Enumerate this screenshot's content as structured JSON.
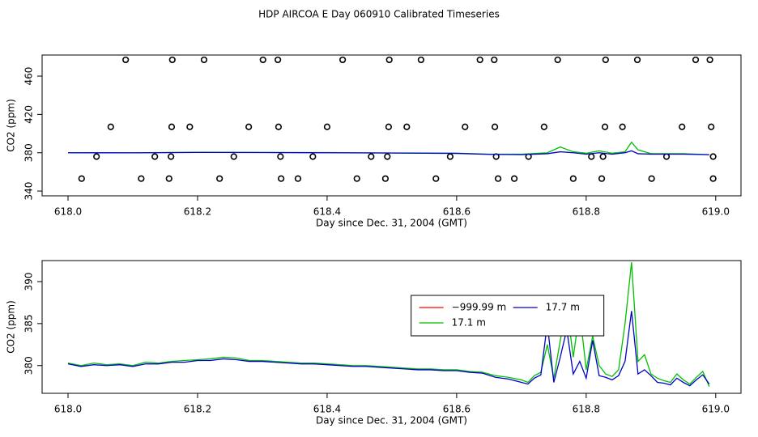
{
  "title": "HDP AIRCOA E  Day 060910  Calibrated Timeseries",
  "chart_data": [
    {
      "type": "scatter",
      "xlabel": "Day since Dec. 31, 2004 (GMT)",
      "ylabel": "CO2 (ppm)",
      "xlim": [
        617.96,
        619.039
      ],
      "ylim": [
        335,
        482
      ],
      "xticks": [
        {
          "value": 618,
          "label": "618.0"
        },
        618.2,
        618.4,
        618.6,
        618.8,
        {
          "value": 619,
          "label": "619.0"
        }
      ],
      "yticks": [
        340,
        380,
        420,
        460
      ],
      "series": [
        {
          "color": "#000000",
          "marker": "circle",
          "x": [
            618.089,
            618.161,
            618.21,
            618.301,
            618.324,
            618.424,
            618.496,
            618.545,
            618.636,
            618.658,
            618.756,
            618.83,
            618.879,
            618.969,
            618.991,
            618.066,
            618.16,
            618.188,
            618.279,
            618.325,
            618.4,
            618.495,
            618.523,
            618.613,
            618.659,
            618.735,
            618.829,
            618.856,
            618.948,
            618.993,
            618.044,
            618.134,
            618.159,
            618.256,
            618.328,
            618.378,
            618.468,
            618.493,
            618.59,
            618.661,
            618.711,
            618.808,
            618.826,
            618.924,
            618.996,
            618.021,
            618.113,
            618.156,
            618.234,
            618.329,
            618.355,
            618.446,
            618.49,
            618.568,
            618.664,
            618.689,
            618.78,
            618.824,
            618.901,
            618.996
          ],
          "values": [
            477,
            477,
            477,
            477,
            477,
            477,
            477,
            477,
            477,
            477,
            477,
            477,
            477,
            477,
            477,
            407,
            407,
            407,
            407,
            407,
            407,
            407,
            407,
            407,
            407,
            407,
            407,
            407,
            407,
            407,
            376,
            376,
            376,
            376,
            376,
            376,
            376,
            376,
            376,
            376,
            376,
            376,
            376,
            376,
            376,
            353,
            353,
            353,
            353,
            353,
            353,
            353,
            353,
            353,
            353,
            353,
            353,
            353,
            353,
            353
          ]
        },
        {
          "color": "#00c000",
          "x": [
            618.0,
            618.1,
            618.2,
            618.3,
            618.4,
            618.5,
            618.6,
            618.65,
            618.7,
            618.74,
            618.76,
            618.78,
            618.8,
            618.82,
            618.84,
            618.86,
            618.87,
            618.88,
            618.9,
            618.95,
            618.99
          ],
          "values": [
            380,
            380,
            380.5,
            380.3,
            380.2,
            379.8,
            379.5,
            378.5,
            378.5,
            380,
            386,
            381,
            379.5,
            382,
            379.5,
            381,
            391,
            383,
            379,
            379,
            378
          ]
        },
        {
          "color": "#0000cc",
          "x": [
            618.0,
            618.1,
            618.2,
            618.3,
            618.4,
            618.5,
            618.6,
            618.65,
            618.7,
            618.74,
            618.76,
            618.78,
            618.8,
            618.82,
            618.84,
            618.86,
            618.87,
            618.88,
            618.9,
            618.95,
            618.99
          ],
          "values": [
            380,
            379.9,
            380.3,
            380.2,
            380,
            379.7,
            379.3,
            378.3,
            378,
            379,
            381,
            380,
            378.5,
            380,
            378.5,
            380,
            382,
            379,
            378.5,
            378.5,
            378
          ]
        }
      ]
    },
    {
      "type": "line",
      "xlabel": "Day since Dec. 31, 2004 (GMT)",
      "ylabel": "CO2 (ppm)",
      "xlim": [
        617.96,
        619.039
      ],
      "ylim": [
        376.7,
        392.5
      ],
      "xticks": [
        {
          "value": 618,
          "label": "618.0"
        },
        618.2,
        618.4,
        618.6,
        618.8,
        {
          "value": 619,
          "label": "619.0"
        }
      ],
      "yticks": [
        380,
        385,
        390
      ],
      "legend": "center-right",
      "series": [
        {
          "name": "−999.99 m",
          "color": "#ff0000",
          "x": [],
          "values": []
        },
        {
          "name": "17.1 m",
          "color": "#00c000",
          "x": [
            618.0,
            618.02,
            618.04,
            618.06,
            618.08,
            618.1,
            618.12,
            618.14,
            618.16,
            618.18,
            618.2,
            618.22,
            618.24,
            618.26,
            618.28,
            618.3,
            618.32,
            618.34,
            618.36,
            618.38,
            618.4,
            618.42,
            618.44,
            618.46,
            618.48,
            618.5,
            618.52,
            618.54,
            618.56,
            618.58,
            618.6,
            618.62,
            618.64,
            618.66,
            618.68,
            618.7,
            618.71,
            618.72,
            618.73,
            618.74,
            618.75,
            618.76,
            618.77,
            618.78,
            618.79,
            618.8,
            618.81,
            618.82,
            618.83,
            618.84,
            618.85,
            618.86,
            618.87,
            618.88,
            618.89,
            618.9,
            618.91,
            618.92,
            618.93,
            618.94,
            618.95,
            618.96,
            618.97,
            618.98,
            618.99
          ],
          "values": [
            380.3,
            380.0,
            380.3,
            380.1,
            380.2,
            380.0,
            380.4,
            380.3,
            380.5,
            380.6,
            380.7,
            380.8,
            381.0,
            380.9,
            380.6,
            380.6,
            380.5,
            380.4,
            380.3,
            380.3,
            380.2,
            380.1,
            380.0,
            380.0,
            379.9,
            379.8,
            379.7,
            379.6,
            379.6,
            379.5,
            379.5,
            379.3,
            379.2,
            378.8,
            378.6,
            378.3,
            378.0,
            378.8,
            379.2,
            382.5,
            378.5,
            383.0,
            387.2,
            381.0,
            386.5,
            379.5,
            383.5,
            380.0,
            379.0,
            378.7,
            379.5,
            385.0,
            392.3,
            380.5,
            381.3,
            379.0,
            378.5,
            378.2,
            378.0,
            379.0,
            378.3,
            377.8,
            378.6,
            379.3,
            377.5
          ]
        },
        {
          "name": "17.7 m",
          "color": "#0000cc",
          "x": [
            618.0,
            618.02,
            618.04,
            618.06,
            618.08,
            618.1,
            618.12,
            618.14,
            618.16,
            618.18,
            618.2,
            618.22,
            618.24,
            618.26,
            618.28,
            618.3,
            618.32,
            618.34,
            618.36,
            618.38,
            618.4,
            618.42,
            618.44,
            618.46,
            618.48,
            618.5,
            618.52,
            618.54,
            618.56,
            618.58,
            618.6,
            618.62,
            618.64,
            618.66,
            618.68,
            618.7,
            618.71,
            618.72,
            618.73,
            618.74,
            618.75,
            618.76,
            618.77,
            618.78,
            618.79,
            618.8,
            618.81,
            618.82,
            618.83,
            618.84,
            618.85,
            618.86,
            618.87,
            618.88,
            618.89,
            618.9,
            618.91,
            618.92,
            618.93,
            618.94,
            618.95,
            618.96,
            618.97,
            618.98,
            618.99
          ],
          "values": [
            380.2,
            379.9,
            380.1,
            380.0,
            380.1,
            379.9,
            380.2,
            380.2,
            380.4,
            380.4,
            380.6,
            380.6,
            380.8,
            380.7,
            380.5,
            380.5,
            380.4,
            380.3,
            380.2,
            380.2,
            380.1,
            380.0,
            379.9,
            379.9,
            379.8,
            379.7,
            379.6,
            379.5,
            379.5,
            379.4,
            379.4,
            379.2,
            379.1,
            378.6,
            378.4,
            378.0,
            377.8,
            378.5,
            378.9,
            385.0,
            378.0,
            381.0,
            384.3,
            379.0,
            380.5,
            378.5,
            383.0,
            378.8,
            378.6,
            378.3,
            378.8,
            380.5,
            386.5,
            379.0,
            379.5,
            378.8,
            378.0,
            377.9,
            377.7,
            378.5,
            378.0,
            377.6,
            378.3,
            378.9,
            377.8
          ]
        }
      ]
    }
  ]
}
